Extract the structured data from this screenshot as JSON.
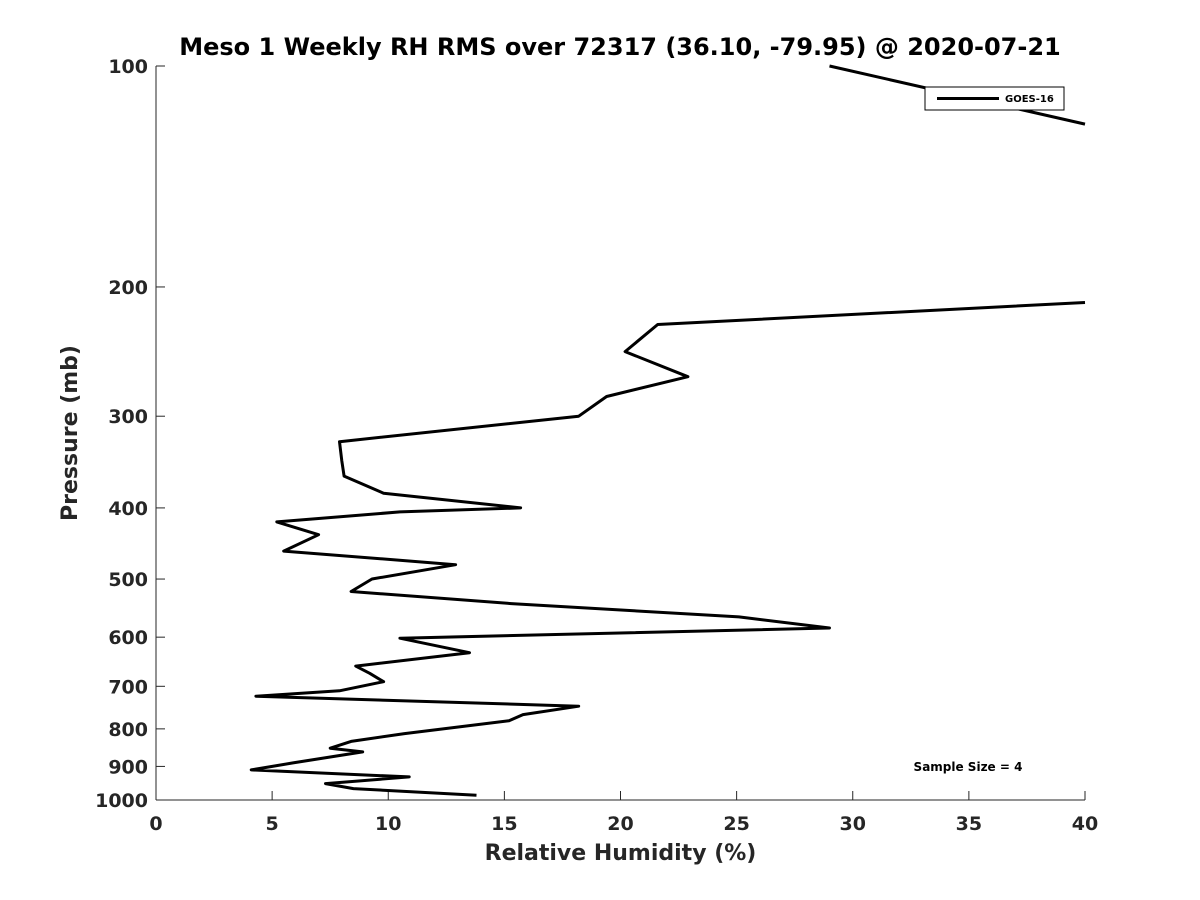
{
  "chart_data": {
    "type": "line",
    "title": "Meso 1 Weekly RH RMS over 72317 (36.10, -79.95) @ 2020-07-21",
    "xlabel": "Relative Humidity (%)",
    "ylabel": "Pressure (mb)",
    "xlim": [
      0,
      40
    ],
    "ylim": [
      100,
      1000
    ],
    "y_scale": "log",
    "y_reversed": true,
    "x_ticks": [
      0,
      5,
      10,
      15,
      20,
      25,
      30,
      35,
      40
    ],
    "y_ticks": [
      100,
      200,
      300,
      400,
      500,
      600,
      700,
      800,
      900,
      1000
    ],
    "grid": false,
    "legend_position": "top-right",
    "series": [
      {
        "name": "GOES-16",
        "color": "#000000",
        "points": [
          [
            29.0,
            100
          ],
          [
            40.0,
            120
          ],
          [
            40.0,
            210
          ],
          [
            21.6,
            225
          ],
          [
            20.2,
            245
          ],
          [
            22.9,
            265
          ],
          [
            19.4,
            282
          ],
          [
            18.2,
            300
          ],
          [
            7.9,
            325
          ],
          [
            8.0,
            345
          ],
          [
            8.1,
            362
          ],
          [
            9.8,
            382
          ],
          [
            15.7,
            400
          ],
          [
            10.5,
            405
          ],
          [
            5.2,
            418
          ],
          [
            7.0,
            435
          ],
          [
            5.5,
            458
          ],
          [
            12.9,
            478
          ],
          [
            9.3,
            500
          ],
          [
            8.4,
            520
          ],
          [
            15.3,
            540
          ],
          [
            25.1,
            563
          ],
          [
            29.0,
            583
          ],
          [
            10.5,
            602
          ],
          [
            13.5,
            630
          ],
          [
            8.6,
            657
          ],
          [
            9.2,
            672
          ],
          [
            9.8,
            690
          ],
          [
            7.9,
            710
          ],
          [
            4.3,
            722
          ],
          [
            18.2,
            745
          ],
          [
            15.8,
            765
          ],
          [
            15.2,
            780
          ],
          [
            10.7,
            812
          ],
          [
            8.4,
            832
          ],
          [
            7.5,
            850
          ],
          [
            8.9,
            860
          ],
          [
            5.9,
            890
          ],
          [
            4.1,
            910
          ],
          [
            10.9,
            930
          ],
          [
            7.3,
            950
          ],
          [
            8.5,
            965
          ],
          [
            13.8,
            985
          ]
        ]
      }
    ],
    "annotations": [
      "Sample Size = 4"
    ]
  }
}
